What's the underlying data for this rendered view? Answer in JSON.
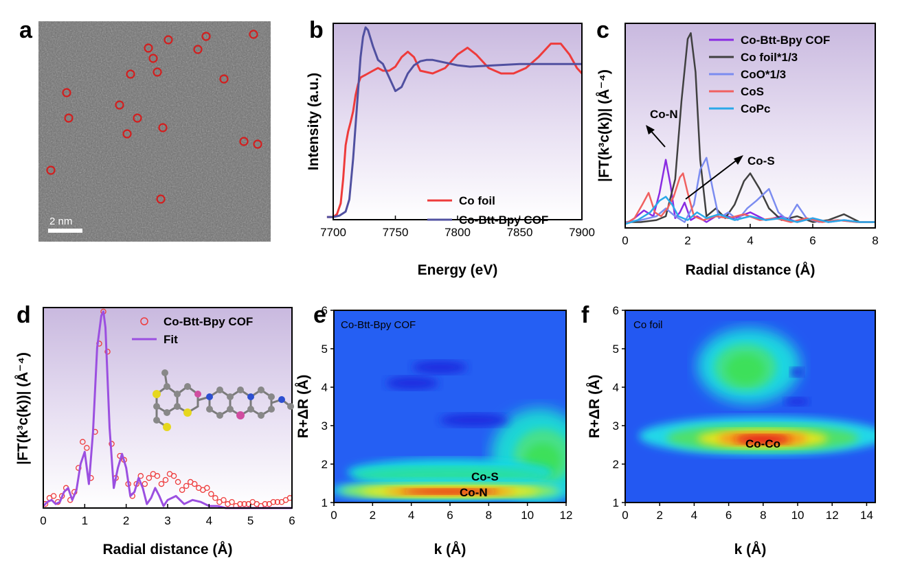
{
  "panels": {
    "a": {
      "label": "a",
      "scale_bar_text": "2 nm",
      "marker_color": "#d21f1f"
    },
    "b": {
      "label": "b",
      "xlabel": "Energy (eV)",
      "ylabel": "Intensity (a.u.)"
    },
    "c": {
      "label": "c",
      "xlabel": "Radial distance (Å)",
      "ylabel": "|FT(k³c(k))| (Å⁻⁴)",
      "annotations": [
        "Co-N",
        "Co-S"
      ]
    },
    "d": {
      "label": "d",
      "xlabel": "Radial distance (Å)",
      "ylabel": "|FT(k³c(k))| (Å⁻⁴)"
    },
    "e": {
      "label": "e",
      "xlabel": "k (Å)",
      "ylabel": "R+ΔR (Å)",
      "inner_title": "Co-Btt-Bpy COF",
      "annotations": [
        "Co-S",
        "Co-N"
      ]
    },
    "f": {
      "label": "f",
      "xlabel": "k (Å)",
      "ylabel": "R+ΔR (Å)",
      "inner_title": "Co foil",
      "annotations": [
        "Co-Co"
      ]
    }
  },
  "chart_data": [
    {
      "panel": "b",
      "type": "line",
      "title": "",
      "xlabel": "Energy (eV)",
      "ylabel": "Intensity (a.u.)",
      "xlim": [
        7700,
        7900
      ],
      "ylim": [
        0,
        1.45
      ],
      "xticks": [
        7700,
        7750,
        7800,
        7850,
        7900
      ],
      "legend": "bottom-right",
      "series": [
        {
          "name": "Co foil",
          "color": "#ee3b3b",
          "x": [
            7695,
            7700,
            7703,
            7706,
            7708,
            7710,
            7712,
            7714,
            7716,
            7718,
            7720,
            7722,
            7724,
            7726,
            7728,
            7732,
            7736,
            7740,
            7745,
            7750,
            7755,
            7760,
            7765,
            7770,
            7780,
            7790,
            7800,
            7808,
            7815,
            7825,
            7835,
            7845,
            7855,
            7865,
            7875,
            7883,
            7890,
            7896,
            7900
          ],
          "y": [
            0.02,
            0.02,
            0.04,
            0.12,
            0.3,
            0.55,
            0.65,
            0.72,
            0.8,
            0.92,
            1.0,
            1.05,
            1.06,
            1.07,
            1.08,
            1.1,
            1.12,
            1.1,
            1.1,
            1.13,
            1.2,
            1.24,
            1.2,
            1.1,
            1.08,
            1.12,
            1.22,
            1.27,
            1.22,
            1.12,
            1.08,
            1.08,
            1.12,
            1.2,
            1.3,
            1.3,
            1.22,
            1.12,
            1.08
          ]
        },
        {
          "name": "Co-Btt-Bpy COF",
          "color": "#5050a0",
          "x": [
            7695,
            7700,
            7705,
            7710,
            7713,
            7716,
            7718,
            7720,
            7722,
            7724,
            7726,
            7728,
            7732,
            7736,
            7740,
            7745,
            7750,
            7755,
            7760,
            7765,
            7770,
            7775,
            7780,
            7790,
            7800,
            7810,
            7830,
            7850,
            7870,
            7890,
            7900
          ],
          "y": [
            0.02,
            0.02,
            0.03,
            0.06,
            0.15,
            0.45,
            0.7,
            0.95,
            1.2,
            1.35,
            1.42,
            1.4,
            1.28,
            1.18,
            1.15,
            1.05,
            0.95,
            0.98,
            1.08,
            1.14,
            1.17,
            1.18,
            1.18,
            1.16,
            1.14,
            1.13,
            1.14,
            1.15,
            1.15,
            1.15,
            1.15
          ]
        }
      ]
    },
    {
      "panel": "c",
      "type": "line",
      "title": "",
      "xlabel": "Radial distance (Å)",
      "ylabel": "|FT(k³c(k))| (Å⁻⁴)",
      "xlim": [
        0,
        8
      ],
      "ylim": [
        0,
        1.05
      ],
      "xticks": [
        0,
        2,
        4,
        6,
        8
      ],
      "legend": "top-right",
      "series": [
        {
          "name": "Co-Btt-Bpy COF",
          "color": "#8a2be2",
          "x": [
            0,
            0.3,
            0.6,
            0.9,
            1.1,
            1.3,
            1.45,
            1.6,
            1.75,
            1.9,
            2.1,
            2.3,
            2.6,
            3.0,
            3.5,
            4.0,
            4.5,
            5.0,
            5.5,
            6.0,
            6.5,
            7.0,
            7.5,
            8.0
          ],
          "y": [
            0.02,
            0.05,
            0.09,
            0.06,
            0.18,
            0.35,
            0.22,
            0.05,
            0.08,
            0.13,
            0.04,
            0.06,
            0.03,
            0.07,
            0.05,
            0.08,
            0.04,
            0.06,
            0.03,
            0.05,
            0.03,
            0.04,
            0.03,
            0.03
          ]
        },
        {
          "name": "Co foil*1/3",
          "color": "#404040",
          "x": [
            0,
            0.5,
            1.0,
            1.3,
            1.6,
            1.8,
            2.0,
            2.1,
            2.25,
            2.4,
            2.6,
            2.9,
            3.2,
            3.5,
            3.8,
            4.0,
            4.3,
            4.6,
            5.0,
            5.5,
            6.0,
            6.5,
            7.0,
            7.5,
            8.0
          ],
          "y": [
            0.03,
            0.03,
            0.04,
            0.06,
            0.25,
            0.65,
            0.97,
            1.0,
            0.8,
            0.35,
            0.06,
            0.1,
            0.05,
            0.12,
            0.24,
            0.28,
            0.2,
            0.1,
            0.04,
            0.06,
            0.03,
            0.04,
            0.07,
            0.03,
            0.03
          ]
        },
        {
          "name": "CoO*1/3",
          "color": "#7b8cf0",
          "x": [
            0,
            0.5,
            1.0,
            1.3,
            1.6,
            1.9,
            2.2,
            2.4,
            2.6,
            2.8,
            3.0,
            3.3,
            3.6,
            3.9,
            4.2,
            4.6,
            4.9,
            5.2,
            5.5,
            5.8,
            6.2,
            6.8,
            7.4,
            8.0
          ],
          "y": [
            0.03,
            0.04,
            0.06,
            0.1,
            0.06,
            0.03,
            0.12,
            0.3,
            0.36,
            0.2,
            0.05,
            0.08,
            0.04,
            0.1,
            0.14,
            0.2,
            0.08,
            0.04,
            0.12,
            0.05,
            0.03,
            0.04,
            0.03,
            0.03
          ]
        },
        {
          "name": "CoS",
          "color": "#f06060",
          "x": [
            0,
            0.3,
            0.55,
            0.75,
            0.95,
            1.15,
            1.35,
            1.55,
            1.75,
            1.85,
            2.0,
            2.2,
            2.5,
            2.9,
            3.3,
            3.8,
            4.3,
            4.8,
            5.3,
            5.8,
            6.3,
            6.8,
            7.4,
            8.0
          ],
          "y": [
            0.02,
            0.05,
            0.12,
            0.18,
            0.08,
            0.06,
            0.1,
            0.16,
            0.26,
            0.28,
            0.18,
            0.06,
            0.04,
            0.06,
            0.05,
            0.07,
            0.04,
            0.05,
            0.03,
            0.05,
            0.03,
            0.04,
            0.03,
            0.03
          ]
        },
        {
          "name": "CoPc",
          "color": "#2aa8e8",
          "x": [
            0,
            0.4,
            0.8,
            1.1,
            1.3,
            1.5,
            1.7,
            2.0,
            2.3,
            2.6,
            3.0,
            3.5,
            4.0,
            4.5,
            5.0,
            5.5,
            6.0,
            6.5,
            7.0,
            7.5,
            8.0
          ],
          "y": [
            0.02,
            0.04,
            0.08,
            0.14,
            0.16,
            0.12,
            0.06,
            0.04,
            0.08,
            0.05,
            0.07,
            0.04,
            0.06,
            0.04,
            0.05,
            0.03,
            0.05,
            0.03,
            0.04,
            0.03,
            0.03
          ]
        }
      ]
    },
    {
      "panel": "d",
      "type": "line",
      "title": "",
      "xlabel": "Radial distance (Å)",
      "ylabel": "|FT(k³c(k))| (Å⁻⁴)",
      "xlim": [
        0,
        6
      ],
      "ylim": [
        0,
        1.0
      ],
      "xticks": [
        0,
        1,
        2,
        3,
        4,
        5,
        6
      ],
      "legend": "top-right",
      "series": [
        {
          "name": "Co-Btt-Bpy COF",
          "color": "#ee3b3b",
          "marker": "open-circle",
          "x": [
            0.05,
            0.15,
            0.25,
            0.35,
            0.45,
            0.55,
            0.65,
            0.75,
            0.85,
            0.95,
            1.05,
            1.15,
            1.25,
            1.35,
            1.45,
            1.55,
            1.65,
            1.75,
            1.85,
            1.95,
            2.05,
            2.15,
            2.25,
            2.35,
            2.45,
            2.55,
            2.65,
            2.75,
            2.85,
            2.95,
            3.05,
            3.15,
            3.25,
            3.35,
            3.45,
            3.55,
            3.65,
            3.75,
            3.85,
            3.95,
            4.05,
            4.15,
            4.25,
            4.35,
            4.45,
            4.55,
            4.65,
            4.75,
            4.85,
            4.95,
            5.05,
            5.15,
            5.25,
            5.35,
            5.45,
            5.55,
            5.65,
            5.75,
            5.85,
            5.95
          ],
          "y": [
            0.02,
            0.05,
            0.06,
            0.03,
            0.06,
            0.1,
            0.04,
            0.08,
            0.2,
            0.33,
            0.3,
            0.15,
            0.38,
            0.82,
            0.98,
            0.78,
            0.32,
            0.15,
            0.26,
            0.24,
            0.12,
            0.06,
            0.12,
            0.16,
            0.12,
            0.15,
            0.17,
            0.16,
            0.12,
            0.14,
            0.17,
            0.16,
            0.13,
            0.09,
            0.11,
            0.13,
            0.12,
            0.1,
            0.09,
            0.1,
            0.07,
            0.05,
            0.03,
            0.04,
            0.02,
            0.03,
            0.01,
            0.02,
            0.02,
            0.02,
            0.03,
            0.02,
            0.01,
            0.02,
            0.02,
            0.03,
            0.03,
            0.03,
            0.04,
            0.05
          ]
        },
        {
          "name": "Fit",
          "color": "#9b4fe0",
          "x": [
            0,
            0.1,
            0.2,
            0.3,
            0.4,
            0.5,
            0.6,
            0.7,
            0.8,
            0.9,
            1.0,
            1.1,
            1.2,
            1.3,
            1.4,
            1.45,
            1.5,
            1.6,
            1.7,
            1.8,
            1.9,
            2.0,
            2.1,
            2.2,
            2.3,
            2.4,
            2.5,
            2.6,
            2.7,
            2.8,
            2.9,
            3.0,
            3.2,
            3.4,
            3.6,
            3.8,
            4.0,
            4.2,
            4.4,
            4.6,
            4.8,
            5.0,
            5.5,
            6.0
          ],
          "y": [
            0.01,
            0.03,
            0.04,
            0.02,
            0.03,
            0.08,
            0.1,
            0.04,
            0.09,
            0.22,
            0.28,
            0.12,
            0.38,
            0.8,
            0.96,
            0.98,
            0.9,
            0.4,
            0.1,
            0.2,
            0.27,
            0.2,
            0.06,
            0.08,
            0.15,
            0.1,
            0.02,
            0.05,
            0.1,
            0.06,
            0.01,
            0.04,
            0.06,
            0.02,
            0.04,
            0.03,
            0.01,
            0.01,
            0.0,
            0.0,
            0.0,
            0.0,
            0.0,
            0.0
          ]
        }
      ]
    },
    {
      "panel": "e",
      "type": "heatmap",
      "title": "",
      "xlabel": "k (Å)",
      "ylabel": "R+ΔR (Å)",
      "xlim": [
        0,
        12
      ],
      "ylim": [
        1,
        6
      ],
      "xticks": [
        0,
        2,
        4,
        6,
        8,
        10,
        12
      ],
      "yticks": [
        1,
        2,
        3,
        4,
        5,
        6
      ],
      "colormap": "jet",
      "features": [
        {
          "label": "Co-N",
          "k": 6.5,
          "r": 1.45,
          "intensity": 1.0
        },
        {
          "label": "Co-S",
          "k": 6.5,
          "r": 1.75,
          "intensity": 0.4
        },
        {
          "label": "",
          "k": 10.0,
          "r": 3.0,
          "intensity": 0.45
        }
      ]
    },
    {
      "panel": "f",
      "type": "heatmap",
      "title": "",
      "xlabel": "k (Å)",
      "ylabel": "R+ΔR (Å)",
      "xlim": [
        0,
        14.5
      ],
      "ylim": [
        1,
        6
      ],
      "xticks": [
        0,
        2,
        4,
        6,
        8,
        10,
        12,
        14
      ],
      "yticks": [
        1,
        2,
        3,
        4,
        5,
        6
      ],
      "colormap": "jet",
      "features": [
        {
          "label": "Co-Co",
          "k": 7.8,
          "r": 2.2,
          "intensity": 1.0
        },
        {
          "label": "",
          "k": 7.0,
          "r": 4.3,
          "intensity": 0.45
        }
      ]
    }
  ]
}
